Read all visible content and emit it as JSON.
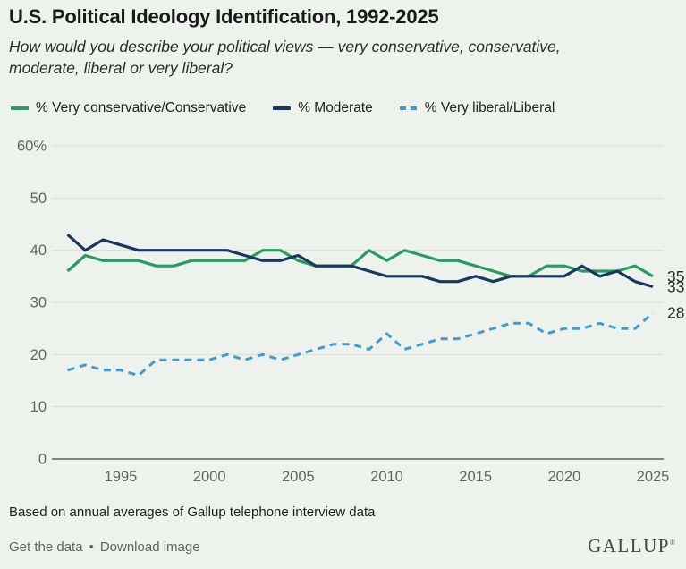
{
  "header": {
    "title": "U.S. Political Ideology Identification, 1992-2025",
    "subtitle_line1": "How would you describe your political views — very conservative, conservative,",
    "subtitle_line2": "moderate, liberal or very liberal?"
  },
  "legend": [
    {
      "label": "% Very conservative/Conservative",
      "color": "#289B61",
      "style": "solid"
    },
    {
      "label": "% Moderate",
      "color": "#1A3763",
      "style": "solid"
    },
    {
      "label": "% Very liberal/Liberal",
      "color": "#3E9CD4",
      "style": "dashed"
    }
  ],
  "chart_data": {
    "type": "line",
    "title": "U.S. Political Ideology Identification, 1992-2025",
    "x": [
      1992,
      1993,
      1994,
      1995,
      1996,
      1997,
      1998,
      1999,
      2000,
      2001,
      2002,
      2003,
      2004,
      2005,
      2006,
      2007,
      2008,
      2009,
      2010,
      2011,
      2012,
      2013,
      2014,
      2015,
      2016,
      2017,
      2018,
      2019,
      2020,
      2021,
      2022,
      2023,
      2024,
      2025
    ],
    "series": [
      {
        "name": "% Very conservative/Conservative",
        "color": "#289B61",
        "style": "solid",
        "values": [
          36,
          39,
          38,
          38,
          38,
          37,
          37,
          38,
          38,
          38,
          38,
          40,
          40,
          38,
          37,
          37,
          37,
          40,
          38,
          40,
          39,
          38,
          38,
          37,
          36,
          35,
          35,
          37,
          37,
          36,
          36,
          36,
          37,
          35
        ]
      },
      {
        "name": "% Moderate",
        "color": "#1A3763",
        "style": "solid",
        "values": [
          43,
          40,
          42,
          41,
          40,
          40,
          40,
          40,
          40,
          40,
          39,
          38,
          38,
          39,
          37,
          37,
          37,
          36,
          35,
          35,
          35,
          34,
          34,
          35,
          34,
          35,
          35,
          35,
          35,
          37,
          35,
          36,
          34,
          33
        ]
      },
      {
        "name": "% Very liberal/Liberal",
        "color": "#3E9CD4",
        "style": "dashed",
        "values": [
          17,
          18,
          17,
          17,
          16,
          19,
          19,
          19,
          19,
          20,
          19,
          20,
          19,
          20,
          21,
          22,
          22,
          21,
          24,
          21,
          22,
          23,
          23,
          24,
          25,
          26,
          26,
          24,
          25,
          25,
          26,
          25,
          25,
          28
        ]
      }
    ],
    "ylim": [
      0,
      60
    ],
    "yticks": [
      {
        "value": 60,
        "label": "60%"
      },
      {
        "value": 50,
        "label": "50"
      },
      {
        "value": 40,
        "label": "40"
      },
      {
        "value": 30,
        "label": "30"
      },
      {
        "value": 20,
        "label": "20"
      },
      {
        "value": 10,
        "label": "10"
      },
      {
        "value": 0,
        "label": "0"
      }
    ],
    "xticks": [
      "1995",
      "2000",
      "2005",
      "2010",
      "2015",
      "2020",
      "2025"
    ],
    "grid": "horizontal",
    "legend_position": "top",
    "end_labels": [
      "35",
      "33",
      "28"
    ]
  },
  "footer": {
    "source_note": "Based on annual averages of Gallup telephone interview data",
    "link1": "Get the data",
    "separator": "•",
    "link2": "Download image",
    "brand": "GALLUP",
    "brand_mark": "®"
  },
  "colors": {
    "background": "#EDF3EC",
    "gridline": "#D9DED7",
    "axis_line": "#3F3F3F",
    "tick_text": "#5F6660",
    "end_label_text": "#2A2A2A"
  }
}
